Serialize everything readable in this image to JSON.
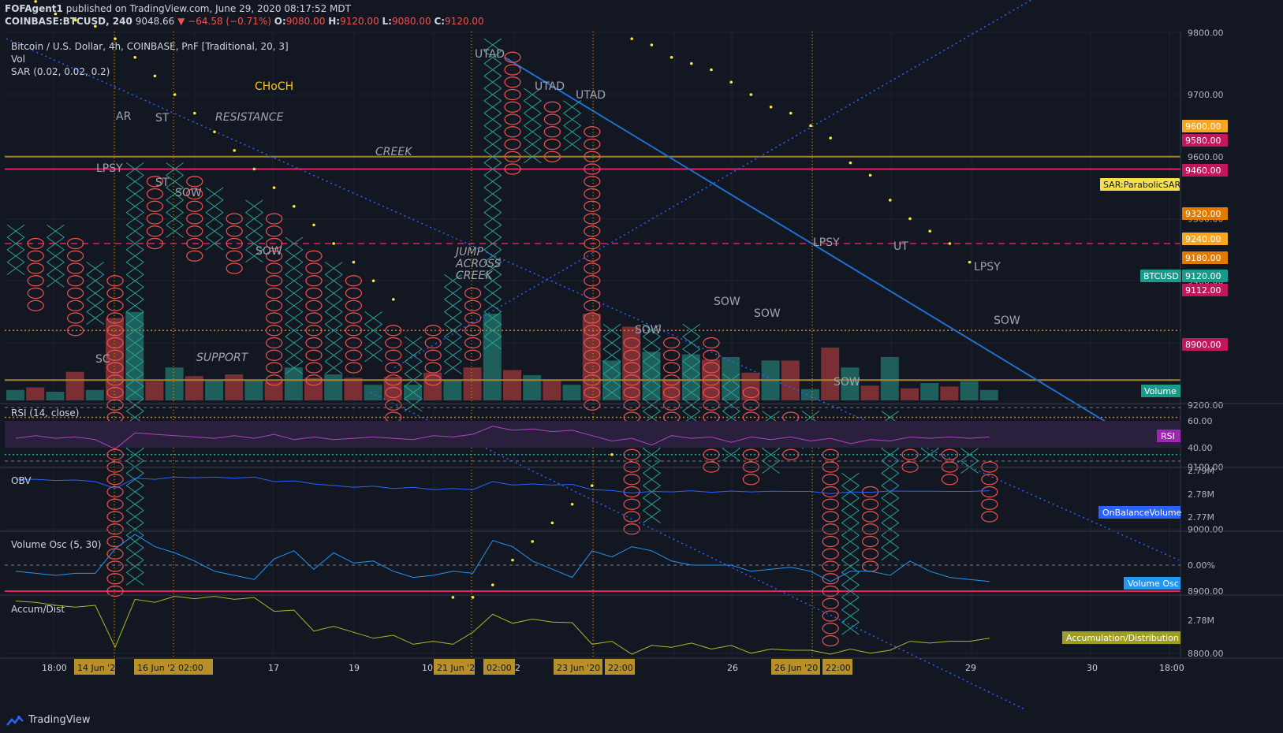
{
  "header": {
    "publisher": "FOFAgent1",
    "published_text": "published on TradingView.com, June 29, 2020 08:17:52 MDT",
    "symbol": "COINBASE:BTCUSD, 240",
    "last": "9048.66",
    "change": "▼ −64.58 (−0.71%)",
    "o_label": "O:",
    "o_val": "9080.00",
    "h_label": "H:",
    "h_val": "9120.00",
    "l_label": "L:",
    "l_val": "9080.00",
    "c_label": "C:",
    "c_val": "9120.00"
  },
  "legend": {
    "title": "Bitcoin / U.S. Dollar, 4h, COINBASE, PnF [Traditional, 20, 3]",
    "vol": "Vol",
    "sar": "SAR (0.02, 0.02, 0.2)"
  },
  "annotations": {
    "choch": "CHoCH",
    "resistance": "RESISTANCE",
    "creek": "CREEK",
    "support": "SUPPORT",
    "jump": [
      "JUMP",
      "ACROSS",
      "CREEK"
    ],
    "ar": "AR",
    "st1": "ST",
    "st2": "ST",
    "lpsy1": "LPSY",
    "sow1": "SOW",
    "sow2": "SOW",
    "sc": "SC",
    "utad1": "UTAD",
    "utad2": "UTAD",
    "utad3": "UTAD",
    "sow3": "SOW",
    "sow4": "SOW",
    "sow5": "SOW",
    "sow6": "SOW",
    "sow7": "SOW",
    "lpsy2": "LPSY",
    "ut": "UT",
    "lpsy3": "LPSY"
  },
  "price_axis": [
    "9800.00",
    "9700.00",
    "9600.00",
    "9500.00",
    "9400.00",
    "9300.00",
    "9200.00",
    "9100.00",
    "9000.00",
    "8900.00",
    "8800.00"
  ],
  "price_tags": [
    {
      "text": "9600.00",
      "color": "#f5a623"
    },
    {
      "text": "9580.00",
      "color": "#c2185b"
    },
    {
      "text": "9460.00",
      "color": "#c2185b"
    },
    {
      "text": "SAR:ParabolicSAR",
      "color": "#f5e04a"
    },
    {
      "text": "9320.00",
      "color": "#e07b00"
    },
    {
      "text": "9240.00",
      "color": "#f5a623"
    },
    {
      "text": "9180.00",
      "color": "#e07b00"
    },
    {
      "text": "BTCUSD",
      "color": "#1a9b8a"
    },
    {
      "text": "9120.00",
      "color": "#1a9b8a"
    },
    {
      "text": "9112.00",
      "color": "#c2185b"
    },
    {
      "text": "8900.00",
      "color": "#c2185b"
    },
    {
      "text": "Volume",
      "color": "#1a9b8a"
    }
  ],
  "indicators": {
    "rsi": {
      "title": "RSI (14, close)",
      "ticks": [
        "60.00",
        "40.00"
      ],
      "tag": "RSI",
      "color": "#9c27b0"
    },
    "obv": {
      "title": "OBV",
      "ticks": [
        "2.79M",
        "2.78M",
        "2.77M"
      ],
      "tag": "OnBalanceVolume",
      "color": "#2962ff"
    },
    "vosc": {
      "title": "Volume Osc (5, 30)",
      "ticks": [
        "0.00%"
      ],
      "tag": "Volume Osc",
      "color": "#2196f3"
    },
    "ad": {
      "title": "Accum/Dist",
      "ticks": [
        "2.78M"
      ],
      "tag": "Accumulation/Distribution",
      "color": "#9e9d24"
    }
  },
  "time_axis": {
    "labels": [
      "18:00",
      "17",
      "19",
      "10:",
      "22",
      "26",
      "29",
      "30",
      "18:00"
    ],
    "highlights": [
      "14 Jun '20",
      "16 Jun '20",
      "02:00",
      "21 Jun '20",
      "02:00",
      "23 Jun '20",
      "22:00",
      "26 Jun '20",
      "22:00",
      "1"
    ]
  },
  "footer": {
    "brand": "TradingView"
  },
  "colors": {
    "bg": "#131722",
    "x": "#26a69a",
    "o": "#ef5350",
    "grid": "#2a2e39"
  },
  "chart_data": {
    "type": "point-and-figure",
    "title": "Bitcoin / U.S. Dollar, 4h, COINBASE, PnF [Traditional, 20, 3]",
    "box_size": 20,
    "reversal": 3,
    "columns": [
      {
        "t": "X",
        "low": 9420,
        "high": 9480
      },
      {
        "t": "O",
        "low": 9360,
        "high": 9460
      },
      {
        "t": "X",
        "low": 9400,
        "high": 9480
      },
      {
        "t": "O",
        "low": 9320,
        "high": 9460
      },
      {
        "t": "X",
        "low": 9340,
        "high": 9420
      },
      {
        "t": "O",
        "low": 8900,
        "high": 9400
      },
      {
        "t": "X",
        "low": 8920,
        "high": 9580
      },
      {
        "t": "O",
        "low": 9460,
        "high": 9560
      },
      {
        "t": "X",
        "low": 9480,
        "high": 9580
      },
      {
        "t": "O",
        "low": 9440,
        "high": 9560
      },
      {
        "t": "X",
        "low": 9460,
        "high": 9540
      },
      {
        "t": "O",
        "low": 9420,
        "high": 9500
      },
      {
        "t": "X",
        "low": 9440,
        "high": 9520
      },
      {
        "t": "O",
        "low": 9240,
        "high": 9500
      },
      {
        "t": "X",
        "low": 9260,
        "high": 9460
      },
      {
        "t": "O",
        "low": 9240,
        "high": 9440
      },
      {
        "t": "X",
        "low": 9260,
        "high": 9420
      },
      {
        "t": "O",
        "low": 9260,
        "high": 9400
      },
      {
        "t": "X",
        "low": 9280,
        "high": 9340
      },
      {
        "t": "O",
        "low": 9180,
        "high": 9320
      },
      {
        "t": "X",
        "low": 9200,
        "high": 9300
      },
      {
        "t": "O",
        "low": 9240,
        "high": 9320
      },
      {
        "t": "X",
        "low": 9260,
        "high": 9400
      },
      {
        "t": "O",
        "low": 9280,
        "high": 9380
      },
      {
        "t": "X",
        "low": 9300,
        "high": 9780
      },
      {
        "t": "O",
        "low": 9580,
        "high": 9760
      },
      {
        "t": "X",
        "low": 9600,
        "high": 9700
      },
      {
        "t": "O",
        "low": 9600,
        "high": 9680
      },
      {
        "t": "X",
        "low": 9620,
        "high": 9680
      },
      {
        "t": "O",
        "low": 9200,
        "high": 9640
      },
      {
        "t": "X",
        "low": 9220,
        "high": 9320
      },
      {
        "t": "O",
        "low": 9000,
        "high": 9300
      },
      {
        "t": "X",
        "low": 9020,
        "high": 9320
      },
      {
        "t": "O",
        "low": 9140,
        "high": 9300
      },
      {
        "t": "X",
        "low": 9160,
        "high": 9320
      },
      {
        "t": "O",
        "low": 9100,
        "high": 9300
      },
      {
        "t": "X",
        "low": 9120,
        "high": 9240
      },
      {
        "t": "O",
        "low": 9080,
        "high": 9220
      },
      {
        "t": "X",
        "low": 9100,
        "high": 9180
      },
      {
        "t": "O",
        "low": 9120,
        "high": 9180
      },
      {
        "t": "X",
        "low": 9140,
        "high": 9180
      },
      {
        "t": "O",
        "low": 8820,
        "high": 9160
      },
      {
        "t": "X",
        "low": 8840,
        "high": 9080
      },
      {
        "t": "O",
        "low": 8940,
        "high": 9060
      },
      {
        "t": "X",
        "low": 8960,
        "high": 9180
      },
      {
        "t": "O",
        "low": 9100,
        "high": 9160
      },
      {
        "t": "X",
        "low": 9120,
        "high": 9140
      },
      {
        "t": "O",
        "low": 9080,
        "high": 9120
      },
      {
        "t": "X",
        "low": 9100,
        "high": 9120
      },
      {
        "t": "O",
        "low": 9020,
        "high": 9100
      }
    ],
    "volume": [
      120,
      150,
      100,
      330,
      120,
      950,
      1020,
      220,
      380,
      280,
      240,
      300,
      240,
      220,
      380,
      260,
      300,
      260,
      180,
      270,
      180,
      320,
      240,
      380,
      1000,
      350,
      290,
      240,
      180,
      1000,
      460,
      850,
      560,
      240,
      530,
      470,
      500,
      320,
      460,
      460,
      130,
      610,
      380,
      170,
      500,
      140,
      200,
      160,
      220,
      120
    ],
    "volume_up": [
      true,
      false,
      true,
      false,
      true,
      false,
      true,
      false,
      true,
      false,
      true,
      false,
      true,
      false,
      true,
      false,
      true,
      false,
      true,
      false,
      true,
      false,
      true,
      false,
      true,
      false,
      true,
      false,
      true,
      false,
      true,
      false,
      true,
      false,
      true,
      false,
      true,
      false,
      true,
      false,
      true,
      false,
      true,
      false,
      true,
      false,
      true,
      false,
      true,
      true
    ],
    "sar": [
      [
        0,
        9880
      ],
      [
        1,
        9850
      ],
      [
        2,
        9830
      ],
      [
        3,
        9820
      ],
      [
        4,
        9810
      ],
      [
        5,
        9790
      ],
      [
        6,
        9760
      ],
      [
        7,
        9730
      ],
      [
        8,
        9700
      ],
      [
        9,
        9670
      ],
      [
        10,
        9640
      ],
      [
        11,
        9610
      ],
      [
        12,
        9580
      ],
      [
        13,
        9550
      ],
      [
        14,
        9520
      ],
      [
        15,
        9490
      ],
      [
        16,
        9460
      ],
      [
        17,
        9430
      ],
      [
        18,
        9400
      ],
      [
        19,
        9370
      ],
      [
        22,
        8890
      ],
      [
        23,
        8890
      ],
      [
        24,
        8910
      ],
      [
        25,
        8950
      ],
      [
        26,
        8980
      ],
      [
        27,
        9010
      ],
      [
        28,
        9040
      ],
      [
        29,
        9070
      ],
      [
        30,
        9120
      ],
      [
        31,
        9790
      ],
      [
        32,
        9780
      ],
      [
        33,
        9760
      ],
      [
        34,
        9750
      ],
      [
        35,
        9740
      ],
      [
        36,
        9720
      ],
      [
        37,
        9700
      ],
      [
        38,
        9680
      ],
      [
        39,
        9670
      ],
      [
        40,
        9650
      ],
      [
        41,
        9630
      ],
      [
        42,
        9590
      ],
      [
        43,
        9570
      ],
      [
        44,
        9530
      ],
      [
        45,
        9500
      ],
      [
        46,
        9480
      ],
      [
        47,
        9460
      ],
      [
        48,
        9430
      ]
    ],
    "levels": [
      {
        "price": 9600,
        "color": "#a3822e",
        "style": "solid"
      },
      {
        "price": 9580,
        "color": "#e91e63",
        "style": "solid"
      },
      {
        "price": 9460,
        "color": "#e91e63",
        "style": "dashed"
      },
      {
        "price": 9320,
        "color": "#e07b00",
        "style": "dotted"
      },
      {
        "price": 9240,
        "color": "#a3822e",
        "style": "solid"
      },
      {
        "price": 9180,
        "color": "#e07b00",
        "style": "dotted"
      },
      {
        "price": 9120,
        "color": "#26a69a",
        "style": "dotted"
      },
      {
        "price": 8900,
        "color": "#e91e63",
        "style": "solid"
      }
    ],
    "rsi": [
      47,
      49,
      47,
      48,
      46,
      39,
      51,
      50,
      49,
      48,
      47,
      49,
      47,
      50,
      46,
      48,
      46,
      47,
      48,
      47,
      46,
      49,
      48,
      50,
      56,
      53,
      54,
      52,
      53,
      49,
      45,
      47,
      42,
      49,
      47,
      48,
      44,
      48,
      46,
      48,
      45,
      47,
      43,
      46,
      45,
      48,
      47,
      48,
      47,
      48
    ],
    "obv": [
      2.7865,
      2.7865,
      2.786,
      2.7862,
      2.7855,
      2.7825,
      2.787,
      2.7865,
      2.7875,
      2.7872,
      2.7875,
      2.787,
      2.7875,
      2.7855,
      2.7858,
      2.7845,
      2.7838,
      2.783,
      2.7835,
      2.7825,
      2.783,
      2.782,
      2.7825,
      2.782,
      2.7855,
      2.784,
      2.7845,
      2.784,
      2.7843,
      2.782,
      2.7816,
      2.7805,
      2.7812,
      2.781,
      2.7815,
      2.7808,
      2.7814,
      2.781,
      2.7813,
      2.7812,
      2.7812,
      2.7802,
      2.781,
      2.7808,
      2.7814,
      2.7813,
      2.7813,
      2.7812,
      2.7812,
      2.7815
    ],
    "vosc": [
      -3,
      -4,
      -5,
      -4,
      -4,
      8,
      15,
      9,
      6,
      2,
      -3,
      -5,
      -7,
      3,
      7,
      -2,
      6,
      1,
      2,
      -3,
      -6,
      -5,
      -3,
      -4,
      12,
      9,
      2,
      -2,
      -6,
      7,
      4,
      9,
      7,
      2,
      0,
      0,
      0,
      -3,
      -2,
      -1,
      -3,
      -8,
      -3,
      -3,
      -5,
      2,
      -3,
      -6,
      -7,
      -8
    ],
    "ad": [
      2.7832,
      2.783,
      2.7825,
      2.7822,
      2.7825,
      2.7755,
      2.7835,
      2.783,
      2.784,
      2.7836,
      2.784,
      2.7835,
      2.7838,
      2.7815,
      2.7817,
      2.7782,
      2.779,
      2.778,
      2.777,
      2.7775,
      2.776,
      2.7765,
      2.776,
      2.778,
      2.781,
      2.7795,
      2.7802,
      2.7797,
      2.7796,
      2.776,
      2.7765,
      2.774,
      2.7758,
      2.7755,
      2.7762,
      2.7752,
      2.7758,
      2.7745,
      2.7752,
      2.775,
      2.775,
      2.7735,
      2.7752,
      2.7745,
      2.775,
      2.7765,
      2.7762,
      2.7765,
      2.7765,
      2.777
    ]
  }
}
